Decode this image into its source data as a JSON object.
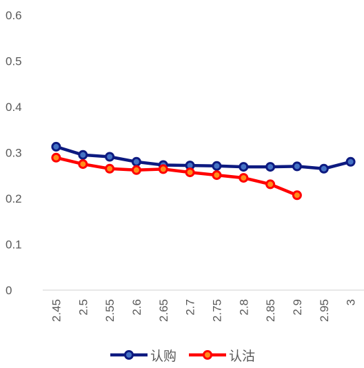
{
  "chart_data": {
    "type": "line",
    "title": "",
    "xlabel": "",
    "ylabel": "",
    "categories": [
      "2.45",
      "2.5",
      "2.55",
      "2.6",
      "2.65",
      "2.7",
      "2.75",
      "2.8",
      "2.85",
      "2.9",
      "2.95",
      "3"
    ],
    "ylim": [
      0,
      0.6
    ],
    "yticks": [
      "0",
      "0.1",
      "0.2",
      "0.3",
      "0.4",
      "0.5",
      "0.6"
    ],
    "grid": false,
    "legend_position": "bottom",
    "series": [
      {
        "name": "认购",
        "color": "#0d1a80",
        "values": [
          0.313,
          0.295,
          0.291,
          0.28,
          0.273,
          0.272,
          0.271,
          0.269,
          0.269,
          0.27,
          0.265,
          0.28
        ]
      },
      {
        "name": "认沽",
        "color": "#ff0000",
        "marker_fill": "#ff8c1a",
        "values": [
          0.289,
          0.275,
          0.265,
          0.262,
          0.264,
          0.257,
          0.251,
          0.245,
          0.231,
          0.207,
          null,
          null
        ]
      }
    ]
  }
}
